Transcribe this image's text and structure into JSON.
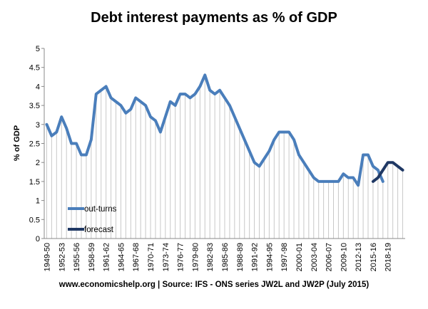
{
  "chart_data": {
    "type": "line",
    "title": "Debt interest payments as % of GDP",
    "ylabel": "% of GDP",
    "xlabel": "",
    "source": "www.economicshelp.org | Source: IFS - ONS series JW2L and JW2P (July 2015)",
    "ylim": [
      0,
      5
    ],
    "yticks": [
      "0",
      "0.5",
      "1",
      "1.5",
      "2",
      "2.5",
      "3",
      "3.5",
      "4",
      "4.5",
      "5"
    ],
    "x_tick_labels": [
      "1949-50",
      "1952-53",
      "1955-56",
      "1958-59",
      "1961-62",
      "1964-65",
      "1967-68",
      "1970-71",
      "1973-74",
      "1976-77",
      "1979-80",
      "1982-83",
      "1985-86",
      "1988-89",
      "1991-92",
      "1994-95",
      "1997-98",
      "2000-01",
      "2003-04",
      "2006-07",
      "2009-10",
      "2012-13",
      "2015-16",
      "2018-19"
    ],
    "grid": "vertical drop lines",
    "legend_position": "bottom-left",
    "series": [
      {
        "name": "out-turns",
        "color": "#4a7ebb",
        "start_year": 1949,
        "values": [
          3.0,
          2.7,
          2.8,
          3.2,
          2.9,
          2.5,
          2.5,
          2.2,
          2.2,
          2.6,
          3.8,
          3.9,
          4.0,
          3.7,
          3.6,
          3.5,
          3.3,
          3.4,
          3.7,
          3.6,
          3.5,
          3.2,
          3.1,
          2.8,
          3.2,
          3.6,
          3.5,
          3.8,
          3.8,
          3.7,
          3.8,
          4.0,
          4.3,
          3.9,
          3.8,
          3.9,
          3.7,
          3.5,
          3.2,
          2.9,
          2.6,
          2.3,
          2.0,
          1.9,
          2.1,
          2.3,
          2.6,
          2.8,
          2.8,
          2.8,
          2.6,
          2.2,
          2.0,
          1.8,
          1.6,
          1.5,
          1.5,
          1.5,
          1.5,
          1.5,
          1.7,
          1.6,
          1.6,
          1.4,
          2.2,
          2.2,
          1.9,
          1.8,
          1.5
        ]
      },
      {
        "name": "forecast",
        "color": "#1f3864",
        "start_year": 2015,
        "values": [
          1.5,
          1.6,
          1.8,
          2.0,
          2.0,
          1.9,
          1.8
        ]
      }
    ]
  }
}
